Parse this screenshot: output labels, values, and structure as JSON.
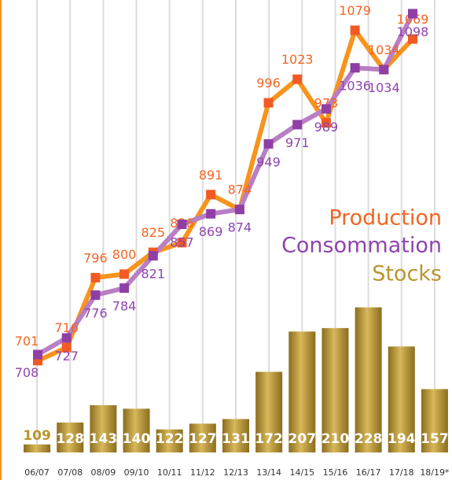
{
  "chart_data": [
    {
      "type": "bar",
      "categories": [
        "06/07",
        "07/08",
        "08/09",
        "09/10",
        "10/11",
        "11/12",
        "12/13",
        "13/14",
        "14/15",
        "15/16",
        "16/17",
        "17/18",
        "18/19*"
      ],
      "series": [
        {
          "name": "Stocks",
          "color": "#b8962e",
          "values": [
            109,
            128,
            143,
            140,
            122,
            127,
            131,
            172,
            207,
            210,
            228,
            194,
            157
          ]
        }
      ],
      "ylim": [
        102,
        240
      ]
    },
    {
      "type": "line",
      "series": [
        {
          "name": "Production",
          "color": "#f7941d",
          "marker_color": "#f15a24",
          "label_color": "#f26522",
          "values": [
            701,
            716,
            796,
            800,
            825,
            836,
            891,
            874,
            996,
            1023,
            973,
            1079,
            1034,
            1069
          ]
        },
        {
          "name": "Consommation",
          "color": "#b87fc4",
          "marker_color": "#8f3fa6",
          "label_color": "#8e44ad",
          "values": [
            708,
            727,
            776,
            784,
            821,
            857,
            869,
            874,
            949,
            971,
            989,
            1036,
            1034,
            1098
          ]
        }
      ],
      "ylim": [
        650,
        1110
      ]
    }
  ]
}
